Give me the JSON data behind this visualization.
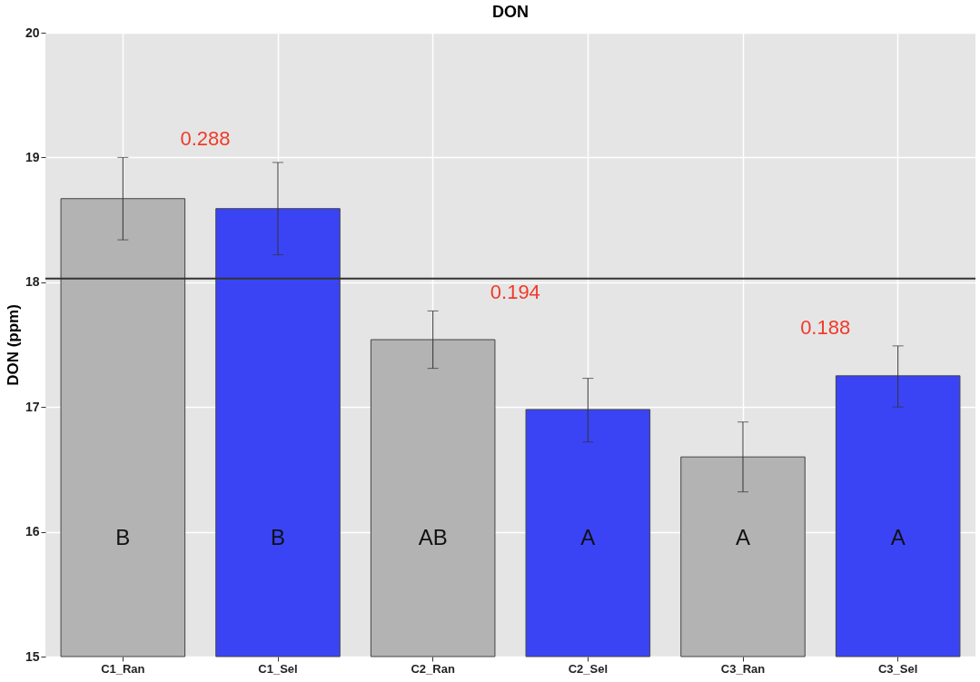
{
  "chart_data": {
    "type": "bar",
    "title": "DON",
    "ylabel": "DON (ppm)",
    "categories": [
      "C1_Ran",
      "C1_Sel",
      "C2_Ran",
      "C2_Sel",
      "C3_Ran",
      "C3_Sel"
    ],
    "values": [
      18.67,
      18.59,
      17.54,
      16.98,
      16.6,
      17.25
    ],
    "colors": [
      "#b3b3b3",
      "#3a44f5",
      "#b3b3b3",
      "#3a44f5",
      "#b3b3b3",
      "#3a44f5"
    ],
    "errors": [
      [
        18.34,
        19.0
      ],
      [
        18.22,
        18.96
      ],
      [
        17.31,
        17.77
      ],
      [
        16.72,
        17.23
      ],
      [
        16.32,
        16.88
      ],
      [
        17.0,
        17.49
      ]
    ],
    "ylim": [
      15,
      20
    ],
    "yticks": [
      15,
      16,
      17,
      18,
      19,
      20
    ],
    "grid": true,
    "ref_lines": [
      {
        "axis": "y",
        "value": 18.03,
        "color": "#333333"
      }
    ],
    "annotations": [
      "B",
      "B",
      "AB",
      "A",
      "A",
      "A",
      "0.288",
      "0.194",
      "0.188"
    ]
  }
}
